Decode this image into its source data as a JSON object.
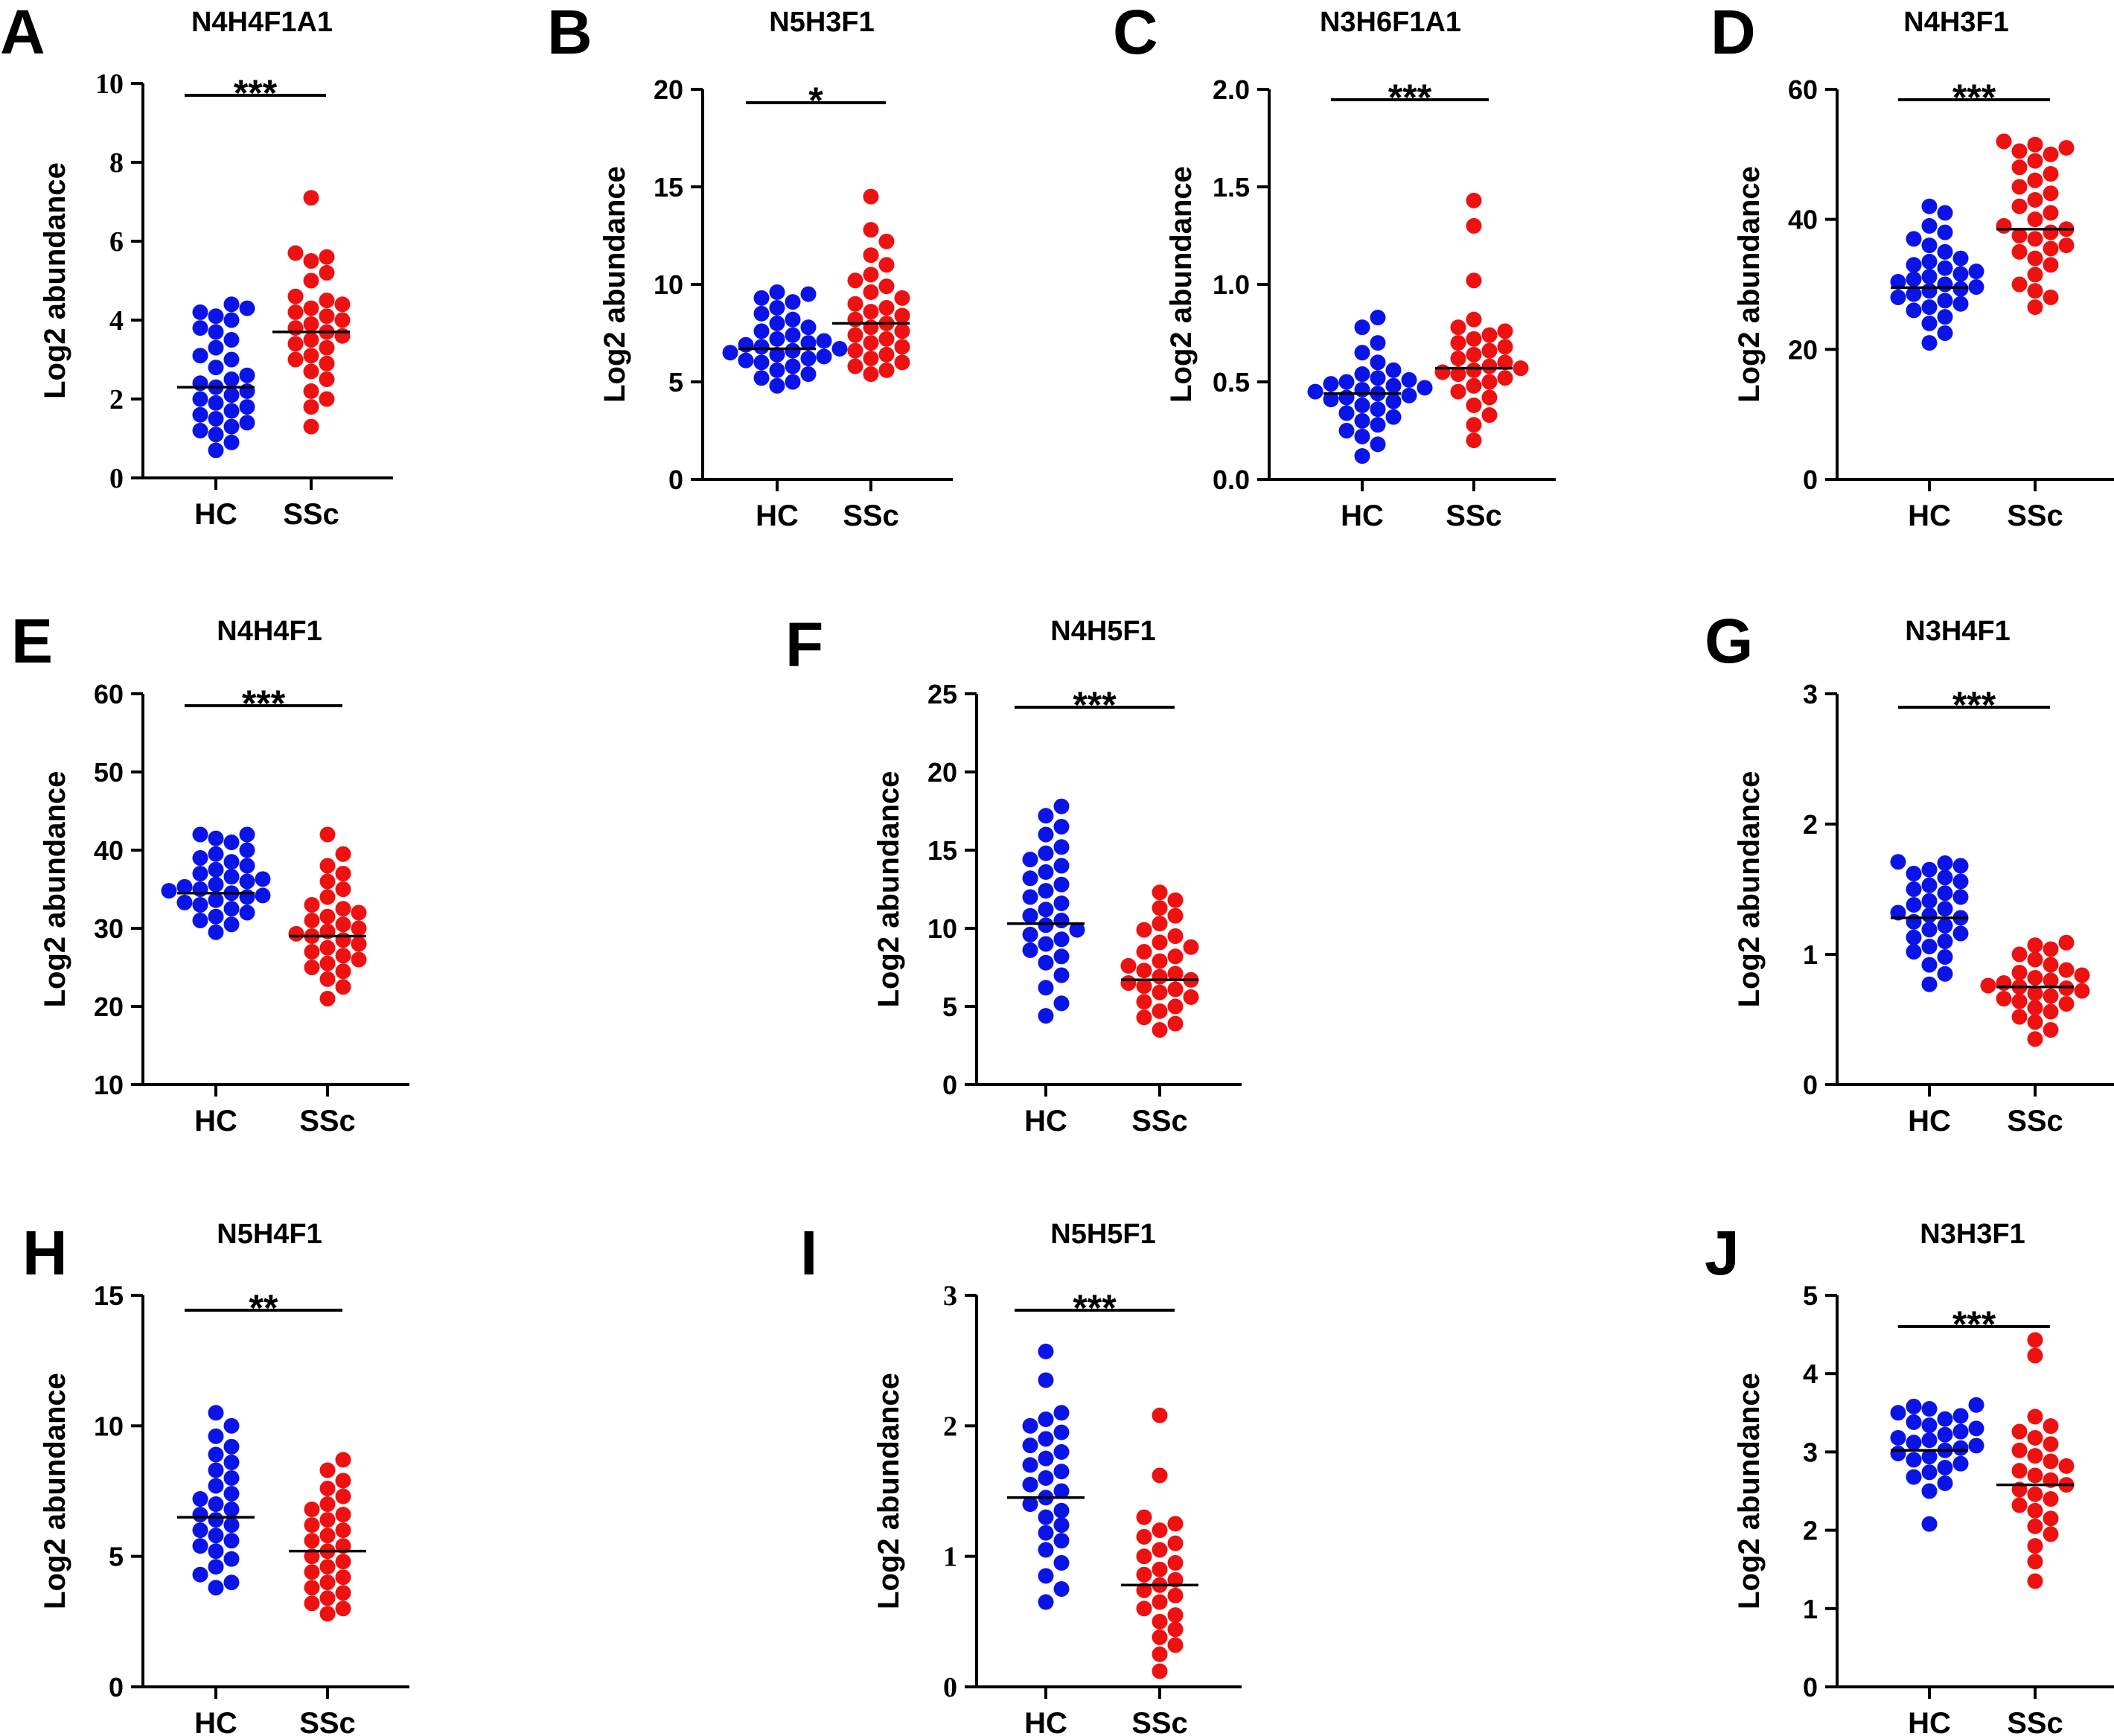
{
  "figure": {
    "colors": {
      "HC": "#0a14e6",
      "SSc": "#ee1111",
      "axis": "#000000"
    }
  },
  "chart_data": [
    {
      "panel": "A",
      "title": "N4H4F1A1",
      "type": "scatter",
      "ylabel": "Log2 abundance",
      "categories": [
        "HC",
        "SSc"
      ],
      "ylim": [
        0,
        10
      ],
      "yticks": [
        "0",
        "2",
        "4",
        "6",
        "8",
        "10"
      ],
      "tick_font": "serif",
      "significance": "***",
      "series": [
        {
          "name": "HC",
          "mean": 2.3,
          "values": [
            0.7,
            0.9,
            1.1,
            1.2,
            1.3,
            1.4,
            1.5,
            1.6,
            1.7,
            1.8,
            1.9,
            2.0,
            2.1,
            2.2,
            2.3,
            2.4,
            2.5,
            2.6,
            2.8,
            3.0,
            3.1,
            3.3,
            3.5,
            3.7,
            3.8,
            4.0,
            4.1,
            4.2,
            4.3,
            4.4
          ]
        },
        {
          "name": "SSc",
          "mean": 3.7,
          "values": [
            1.3,
            1.8,
            2.0,
            2.2,
            2.5,
            2.7,
            2.9,
            3.0,
            3.1,
            3.3,
            3.4,
            3.5,
            3.6,
            3.7,
            3.8,
            3.9,
            4.0,
            4.1,
            4.2,
            4.3,
            4.4,
            4.5,
            4.6,
            5.0,
            5.2,
            5.5,
            5.6,
            5.7,
            7.1
          ]
        }
      ]
    },
    {
      "panel": "B",
      "title": "N5H3F1",
      "type": "scatter",
      "ylabel": "Log2 abundance",
      "categories": [
        "HC",
        "SSc"
      ],
      "ylim": [
        0,
        20
      ],
      "yticks": [
        "0",
        "5",
        "10",
        "15",
        "20"
      ],
      "tick_font": "sans",
      "significance": "*",
      "series": [
        {
          "name": "HC",
          "mean": 6.7,
          "values": [
            4.8,
            5.0,
            5.2,
            5.4,
            5.6,
            5.8,
            6.0,
            6.1,
            6.2,
            6.3,
            6.4,
            6.5,
            6.6,
            6.7,
            6.8,
            6.9,
            7.0,
            7.1,
            7.2,
            7.4,
            7.6,
            7.8,
            8.0,
            8.2,
            8.5,
            8.8,
            9.1,
            9.3,
            9.5,
            9.6
          ]
        },
        {
          "name": "SSc",
          "mean": 8.0,
          "values": [
            5.4,
            5.6,
            5.8,
            6.0,
            6.2,
            6.4,
            6.6,
            6.8,
            7.0,
            7.2,
            7.4,
            7.6,
            7.8,
            8.0,
            8.2,
            8.4,
            8.6,
            8.8,
            9.0,
            9.3,
            9.6,
            9.9,
            10.2,
            10.5,
            11.0,
            11.5,
            12.2,
            12.8,
            14.5
          ]
        }
      ]
    },
    {
      "panel": "C",
      "title": "N3H6F1A1",
      "type": "scatter",
      "ylabel": "Log2 abundance",
      "categories": [
        "HC",
        "SSc"
      ],
      "ylim": [
        0,
        2.0
      ],
      "yticks": [
        "0.0",
        "0.5",
        "1.0",
        "1.5",
        "2.0"
      ],
      "tick_font": "sans",
      "significance": "***",
      "series": [
        {
          "name": "HC",
          "mean": 0.44,
          "values": [
            0.12,
            0.18,
            0.22,
            0.25,
            0.28,
            0.3,
            0.32,
            0.34,
            0.36,
            0.38,
            0.4,
            0.41,
            0.42,
            0.43,
            0.44,
            0.45,
            0.46,
            0.47,
            0.48,
            0.49,
            0.5,
            0.51,
            0.52,
            0.54,
            0.56,
            0.6,
            0.65,
            0.7,
            0.78,
            0.83
          ]
        },
        {
          "name": "SSc",
          "mean": 0.57,
          "values": [
            0.2,
            0.28,
            0.33,
            0.38,
            0.42,
            0.45,
            0.48,
            0.5,
            0.52,
            0.54,
            0.55,
            0.56,
            0.57,
            0.58,
            0.6,
            0.62,
            0.64,
            0.66,
            0.68,
            0.7,
            0.72,
            0.74,
            0.76,
            0.78,
            0.82,
            1.02,
            1.3,
            1.43
          ]
        }
      ]
    },
    {
      "panel": "D",
      "title": "N4H3F1",
      "type": "scatter",
      "ylabel": "Log2 abundance",
      "categories": [
        "HC",
        "SSc"
      ],
      "ylim": [
        0,
        60
      ],
      "yticks": [
        "0",
        "20",
        "40",
        "60"
      ],
      "tick_font": "sans",
      "significance": "***",
      "series": [
        {
          "name": "HC",
          "mean": 29.5,
          "values": [
            21,
            22.5,
            24,
            25,
            26,
            26.5,
            27,
            27.5,
            28,
            28.5,
            29,
            29.3,
            29.6,
            30,
            30.4,
            30.8,
            31.2,
            31.6,
            32,
            32.5,
            33,
            33.5,
            34,
            35,
            36,
            37,
            38,
            39,
            41,
            42
          ]
        },
        {
          "name": "SSc",
          "mean": 38.5,
          "values": [
            26.5,
            28,
            29,
            30,
            31.5,
            33,
            34,
            35,
            35.5,
            36,
            37,
            37.5,
            38,
            38.5,
            39,
            40,
            41,
            42,
            43,
            44,
            45,
            46,
            47,
            48,
            49,
            50,
            50.5,
            51,
            51.5,
            52
          ]
        }
      ]
    },
    {
      "panel": "E",
      "title": "N4H4F1",
      "type": "scatter",
      "ylabel": "Log2 abundance",
      "categories": [
        "HC",
        "SSc"
      ],
      "ylim": [
        10,
        60
      ],
      "yticks": [
        "10",
        "20",
        "30",
        "40",
        "50",
        "60"
      ],
      "tick_font": "sans",
      "significance": "***",
      "series": [
        {
          "name": "HC",
          "mean": 34.5,
          "values": [
            29.5,
            30.5,
            31,
            31.5,
            32,
            32.5,
            33,
            33.3,
            33.6,
            34,
            34.2,
            34.5,
            34.8,
            35,
            35.3,
            35.6,
            36,
            36.3,
            36.6,
            37,
            37.5,
            38,
            38.5,
            39,
            39.5,
            40,
            41,
            41.5,
            42,
            42
          ]
        },
        {
          "name": "SSc",
          "mean": 29,
          "values": [
            21,
            22.5,
            23.5,
            24.5,
            25,
            25.5,
            26,
            26.5,
            27,
            27.5,
            28,
            28.5,
            29,
            29.3,
            29.6,
            30,
            30.5,
            31,
            31.5,
            32,
            32.5,
            33,
            34,
            35,
            36,
            37,
            38,
            39.5,
            42
          ]
        }
      ]
    },
    {
      "panel": "F",
      "title": "N4H5F1",
      "type": "scatter",
      "ylabel": "Log2 abundance",
      "categories": [
        "HC",
        "SSc"
      ],
      "ylim": [
        0,
        25
      ],
      "yticks": [
        "0",
        "5",
        "10",
        "15",
        "20",
        "25"
      ],
      "tick_font": "sans",
      "significance": "***",
      "series": [
        {
          "name": "HC",
          "mean": 10.3,
          "values": [
            4.4,
            5.2,
            6.2,
            7.0,
            7.8,
            8.2,
            8.6,
            9.0,
            9.3,
            9.6,
            9.9,
            10.2,
            10.5,
            10.8,
            11.2,
            11.6,
            12.0,
            12.4,
            12.8,
            13.2,
            13.6,
            14.0,
            14.4,
            14.8,
            15.2,
            16.0,
            16.5,
            17.2,
            17.8
          ]
        },
        {
          "name": "SSc",
          "mean": 6.7,
          "values": [
            3.5,
            3.9,
            4.3,
            4.7,
            5.0,
            5.3,
            5.6,
            5.9,
            6.1,
            6.3,
            6.5,
            6.7,
            6.9,
            7.1,
            7.3,
            7.6,
            7.9,
            8.2,
            8.5,
            8.8,
            9.1,
            9.5,
            9.9,
            10.3,
            10.8,
            11.3,
            11.8,
            12.3
          ]
        }
      ]
    },
    {
      "panel": "G",
      "title": "N3H4F1",
      "type": "scatter",
      "ylabel": "Log2 abundance",
      "categories": [
        "HC",
        "SSc"
      ],
      "ylim": [
        0,
        3
      ],
      "yticks": [
        "0",
        "1",
        "2",
        "3"
      ],
      "tick_font": "sans",
      "significance": "***",
      "series": [
        {
          "name": "HC",
          "mean": 1.28,
          "values": [
            0.77,
            0.85,
            0.92,
            0.98,
            1.02,
            1.06,
            1.1,
            1.13,
            1.16,
            1.19,
            1.22,
            1.25,
            1.28,
            1.3,
            1.32,
            1.35,
            1.38,
            1.41,
            1.44,
            1.47,
            1.5,
            1.53,
            1.56,
            1.59,
            1.62,
            1.65,
            1.68,
            1.7,
            1.71
          ]
        },
        {
          "name": "SSc",
          "mean": 0.75,
          "values": [
            0.35,
            0.42,
            0.48,
            0.52,
            0.56,
            0.59,
            0.62,
            0.64,
            0.66,
            0.68,
            0.7,
            0.72,
            0.74,
            0.75,
            0.76,
            0.78,
            0.8,
            0.82,
            0.84,
            0.86,
            0.88,
            0.92,
            0.96,
            1.0,
            1.04,
            1.07,
            1.09
          ]
        }
      ]
    },
    {
      "panel": "H",
      "title": "N5H4F1",
      "type": "scatter",
      "ylabel": "Log2 abundance",
      "categories": [
        "HC",
        "SSc"
      ],
      "ylim": [
        0,
        15
      ],
      "yticks": [
        "0",
        "5",
        "10",
        "15"
      ],
      "tick_font": "sans",
      "significance": "**",
      "series": [
        {
          "name": "HC",
          "mean": 6.5,
          "values": [
            3.8,
            4.0,
            4.3,
            4.6,
            4.9,
            5.2,
            5.4,
            5.6,
            5.8,
            6.0,
            6.2,
            6.4,
            6.6,
            6.8,
            7.0,
            7.2,
            7.4,
            7.7,
            8.0,
            8.3,
            8.6,
            8.9,
            9.2,
            9.6,
            10.0,
            10.5
          ]
        },
        {
          "name": "SSc",
          "mean": 5.2,
          "values": [
            2.8,
            3.0,
            3.2,
            3.4,
            3.6,
            3.8,
            4.0,
            4.2,
            4.4,
            4.6,
            4.8,
            5.0,
            5.2,
            5.4,
            5.6,
            5.8,
            6.0,
            6.2,
            6.4,
            6.6,
            6.8,
            7.0,
            7.3,
            7.6,
            7.9,
            8.3,
            8.7
          ]
        }
      ]
    },
    {
      "panel": "I",
      "title": "N5H5F1",
      "type": "scatter",
      "ylabel": "Log2 abundance",
      "categories": [
        "HC",
        "SSc"
      ],
      "ylim": [
        0,
        3
      ],
      "yticks": [
        "0",
        "1",
        "2",
        "3"
      ],
      "tick_font": "serif",
      "significance": "***",
      "series": [
        {
          "name": "HC",
          "mean": 1.45,
          "values": [
            0.65,
            0.75,
            0.85,
            0.95,
            1.05,
            1.12,
            1.18,
            1.24,
            1.3,
            1.35,
            1.4,
            1.45,
            1.5,
            1.55,
            1.6,
            1.65,
            1.7,
            1.75,
            1.8,
            1.85,
            1.9,
            1.95,
            2.0,
            2.05,
            2.1,
            2.35,
            2.57
          ]
        },
        {
          "name": "SSc",
          "mean": 0.78,
          "values": [
            0.12,
            0.25,
            0.32,
            0.38,
            0.44,
            0.5,
            0.55,
            0.6,
            0.65,
            0.7,
            0.74,
            0.78,
            0.82,
            0.86,
            0.9,
            0.95,
            1.0,
            1.05,
            1.1,
            1.15,
            1.2,
            1.25,
            1.3,
            1.62,
            2.08
          ]
        }
      ]
    },
    {
      "panel": "J",
      "title": "N3H3F1",
      "type": "scatter",
      "ylabel": "Log2 abundance",
      "categories": [
        "HC",
        "SSc"
      ],
      "ylim": [
        0,
        5
      ],
      "yticks": [
        "0",
        "1",
        "2",
        "3",
        "4",
        "5"
      ],
      "tick_font": "sans",
      "significance": "***",
      "series": [
        {
          "name": "HC",
          "mean": 3.02,
          "values": [
            2.08,
            2.5,
            2.6,
            2.68,
            2.74,
            2.8,
            2.85,
            2.9,
            2.94,
            2.98,
            3.02,
            3.05,
            3.08,
            3.12,
            3.15,
            3.18,
            3.22,
            3.26,
            3.3,
            3.34,
            3.38,
            3.42,
            3.46,
            3.5,
            3.55,
            3.58,
            3.6
          ]
        },
        {
          "name": "SSc",
          "mean": 2.58,
          "values": [
            1.35,
            1.6,
            1.8,
            1.95,
            2.05,
            2.15,
            2.25,
            2.32,
            2.4,
            2.46,
            2.52,
            2.58,
            2.64,
            2.7,
            2.76,
            2.82,
            2.88,
            2.95,
            3.02,
            3.1,
            3.18,
            3.26,
            3.33,
            3.45,
            4.23,
            4.43
          ]
        }
      ]
    }
  ]
}
